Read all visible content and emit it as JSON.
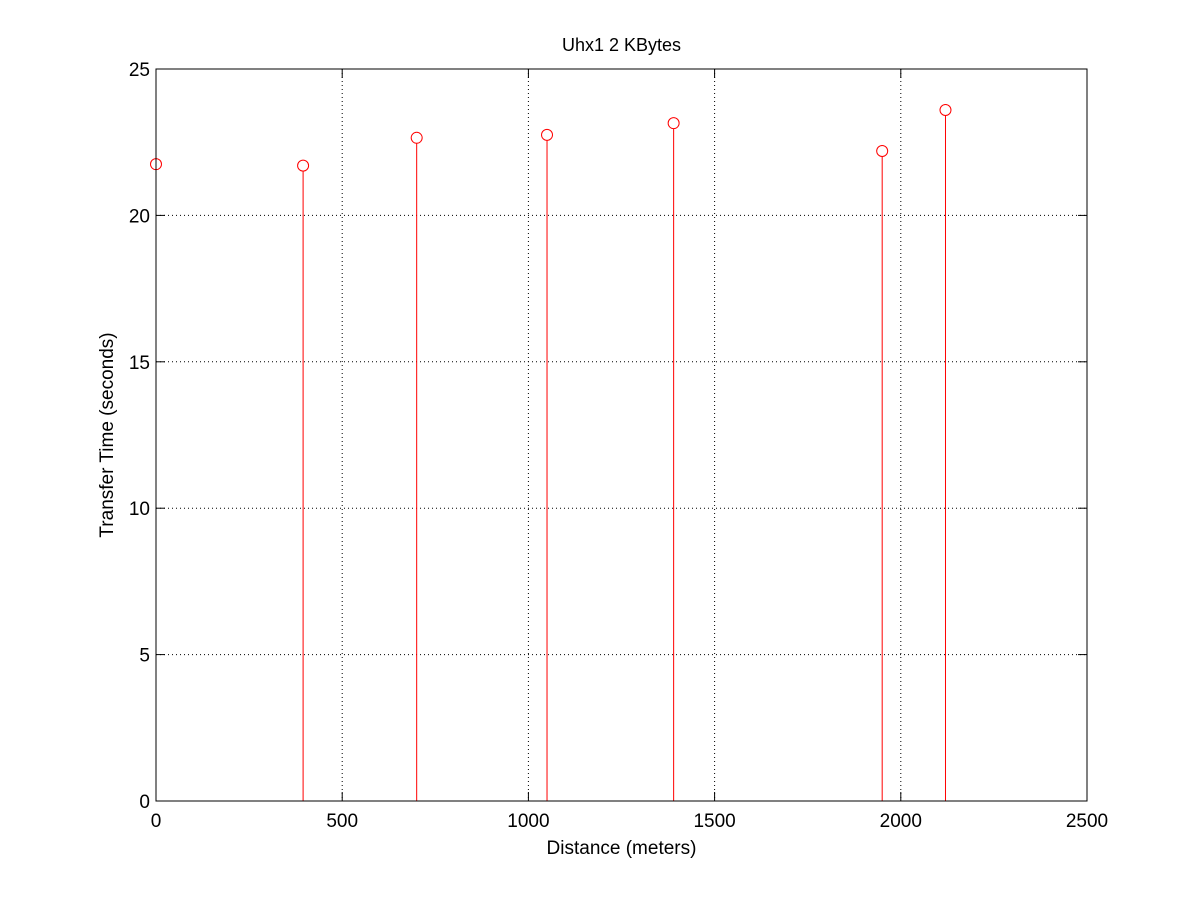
{
  "chart_data": {
    "type": "stem",
    "title": "Uhx1 2 KBytes",
    "xlabel": "Distance (meters)",
    "ylabel": "Transfer Time (seconds)",
    "xlim": [
      0,
      2500
    ],
    "ylim": [
      0,
      25
    ],
    "xticks": [
      0,
      500,
      1000,
      1500,
      2000,
      2500
    ],
    "yticks": [
      0,
      5,
      10,
      15,
      20,
      25
    ],
    "xtick_labels": [
      "0",
      "500",
      "1000",
      "1500",
      "2000",
      "2500"
    ],
    "ytick_labels": [
      "0",
      "5",
      "10",
      "15",
      "20",
      "25"
    ],
    "grid": true,
    "grid_style": "dotted",
    "marker": "circle-open",
    "series_color": "#ff0000",
    "x": [
      0,
      395,
      700,
      1050,
      1390,
      1950,
      2120
    ],
    "y": [
      21.75,
      21.7,
      22.65,
      22.75,
      23.15,
      22.2,
      23.6
    ]
  }
}
